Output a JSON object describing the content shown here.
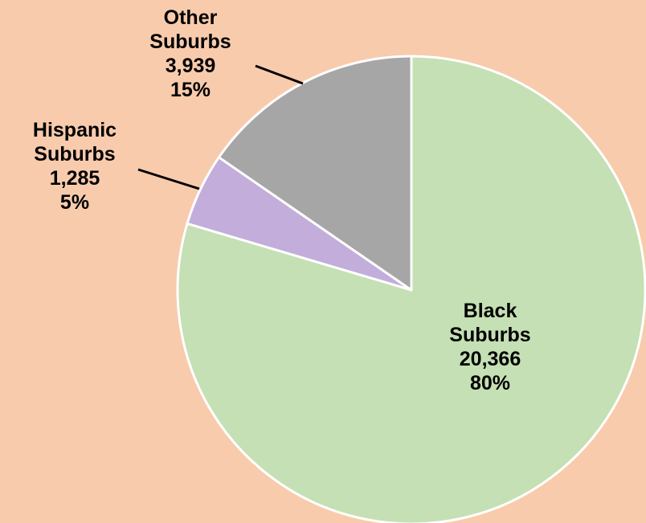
{
  "chart_data": {
    "type": "pie",
    "title": "",
    "slices": [
      {
        "name": "Black\nSuburbs",
        "value": 20366,
        "value_label": "20,366",
        "percent_label": "80%",
        "color": "#C5E0B4"
      },
      {
        "name": "Hispanic\nSuburbs",
        "value": 1285,
        "value_label": "1,285",
        "percent_label": "5%",
        "color": "#C3ADDB"
      },
      {
        "name": "Other\nSuburbs",
        "value": 3939,
        "value_label": "3,939",
        "percent_label": "15%",
        "color": "#A6A6A6"
      }
    ],
    "start_angle_deg": 0,
    "direction": "clockwise",
    "legend": "none",
    "slice_border_color": "#FFFFFF",
    "background_color": "#F8CBAD"
  }
}
